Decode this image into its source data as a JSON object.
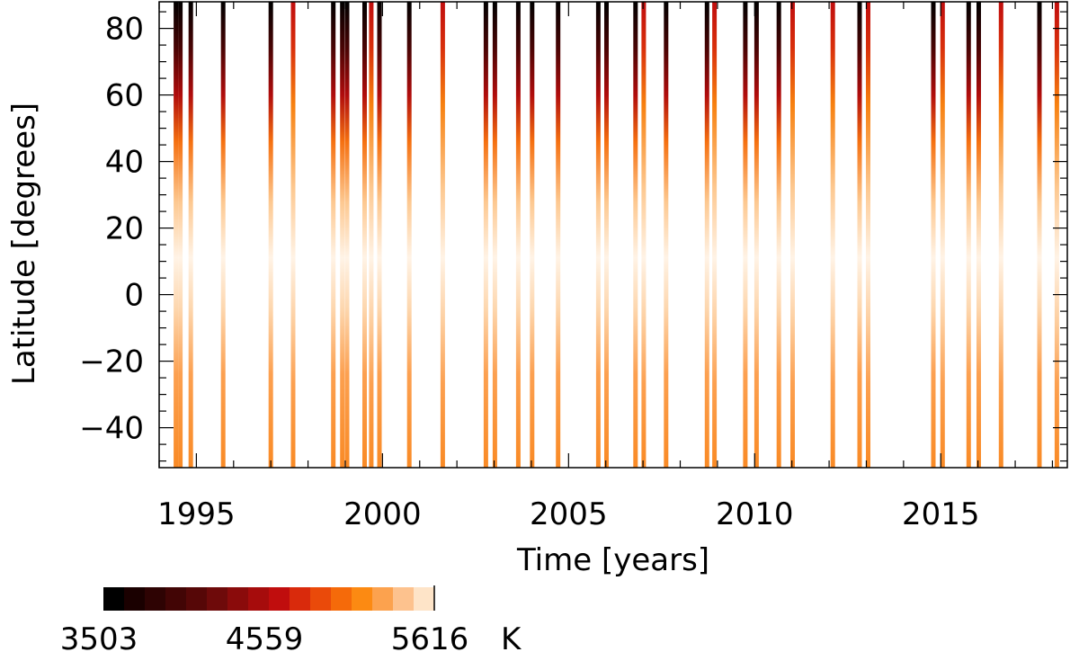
{
  "chart_data": {
    "type": "heatmap",
    "title": "",
    "xlabel": "Time [years]",
    "ylabel": "Latitude [degrees]",
    "xlim": [
      1994.0,
      2018.4
    ],
    "ylim": [
      -52,
      88
    ],
    "x_ticks": [
      {
        "value": 1995,
        "label": "1995"
      },
      {
        "value": 2000,
        "label": "2000"
      },
      {
        "value": 2005,
        "label": "2005"
      },
      {
        "value": 2010,
        "label": "2010"
      },
      {
        "value": 2015,
        "label": "2015"
      }
    ],
    "y_ticks": [
      {
        "value": 80,
        "label": "80"
      },
      {
        "value": 60,
        "label": "60"
      },
      {
        "value": 40,
        "label": "40"
      },
      {
        "value": 20,
        "label": "20"
      },
      {
        "value": 0,
        "label": "0"
      },
      {
        "value": -20,
        "label": "−20"
      },
      {
        "value": -40,
        "label": "−40"
      }
    ],
    "grid": false,
    "colorbar": {
      "unit": "K",
      "range": [
        3503,
        5616
      ],
      "tick_labels": [
        "3503",
        "4559",
        "5616"
      ],
      "colors": [
        "#000000",
        "#1a0000",
        "#2e0303",
        "#420505",
        "#560707",
        "#6e0a0a",
        "#8a0b0b",
        "#a60c0c",
        "#c00d0d",
        "#d92a0c",
        "#ea4a0a",
        "#f56a0a",
        "#fc8a12",
        "#fca24e",
        "#fdc28e",
        "#fee4c8"
      ]
    },
    "observations": [
      {
        "t": 1994.45,
        "north_cool": 78,
        "pole": "cool"
      },
      {
        "t": 1994.57,
        "north_cool": 78,
        "pole": "cool"
      },
      {
        "t": 1994.85,
        "north_cool": 70,
        "pole": "cool"
      },
      {
        "t": 1995.72,
        "north_cool": 68,
        "pole": "cool"
      },
      {
        "t": 1997.0,
        "north_cool": 72,
        "pole": "cool"
      },
      {
        "t": 1997.6,
        "north_cool": 62,
        "pole": "warm"
      },
      {
        "t": 1998.68,
        "north_cool": 78,
        "pole": "cool"
      },
      {
        "t": 1998.92,
        "north_cool": 75,
        "pole": "cool"
      },
      {
        "t": 1999.05,
        "north_cool": 78,
        "pole": "cool"
      },
      {
        "t": 1999.52,
        "north_cool": 72,
        "pole": "cool"
      },
      {
        "t": 1999.7,
        "north_cool": 60,
        "pole": "warm"
      },
      {
        "t": 1999.92,
        "north_cool": 72,
        "pole": "cool"
      },
      {
        "t": 2000.72,
        "north_cool": 70,
        "pole": "cool"
      },
      {
        "t": 2001.62,
        "north_cool": 62,
        "pole": "warm"
      },
      {
        "t": 2002.78,
        "north_cool": 70,
        "pole": "cool"
      },
      {
        "t": 2003.02,
        "north_cool": 72,
        "pole": "cool"
      },
      {
        "t": 2003.65,
        "north_cool": 70,
        "pole": "cool"
      },
      {
        "t": 2004.02,
        "north_cool": 72,
        "pole": "cool"
      },
      {
        "t": 2004.72,
        "north_cool": 66,
        "pole": "cool"
      },
      {
        "t": 2005.8,
        "north_cool": 70,
        "pole": "cool"
      },
      {
        "t": 2006.02,
        "north_cool": 72,
        "pole": "cool"
      },
      {
        "t": 2006.8,
        "north_cool": 66,
        "pole": "cool"
      },
      {
        "t": 2007.02,
        "north_cool": 62,
        "pole": "warm"
      },
      {
        "t": 2007.62,
        "north_cool": 64,
        "pole": "cool"
      },
      {
        "t": 2008.72,
        "north_cool": 72,
        "pole": "cool"
      },
      {
        "t": 2008.92,
        "north_cool": 60,
        "pole": "warm"
      },
      {
        "t": 2009.75,
        "north_cool": 70,
        "pole": "cool"
      },
      {
        "t": 2010.05,
        "north_cool": 72,
        "pole": "cool"
      },
      {
        "t": 2010.65,
        "north_cool": 70,
        "pole": "cool"
      },
      {
        "t": 2011.02,
        "north_cool": 50,
        "pole": "warm"
      },
      {
        "t": 2012.1,
        "north_cool": 45,
        "pole": "warm"
      },
      {
        "t": 2012.82,
        "north_cool": 72,
        "pole": "cool"
      },
      {
        "t": 2013.05,
        "north_cool": 58,
        "pole": "warm"
      },
      {
        "t": 2014.8,
        "north_cool": 72,
        "pole": "cool"
      },
      {
        "t": 2015.05,
        "north_cool": 62,
        "pole": "warm"
      },
      {
        "t": 2015.75,
        "north_cool": 70,
        "pole": "cool"
      },
      {
        "t": 2016.02,
        "north_cool": 72,
        "pole": "cool"
      },
      {
        "t": 2016.62,
        "north_cool": 62,
        "pole": "warm"
      },
      {
        "t": 2017.65,
        "north_cool": 72,
        "pole": "cool"
      },
      {
        "t": 2018.12,
        "north_cool": 64,
        "pole": "warm"
      }
    ]
  }
}
